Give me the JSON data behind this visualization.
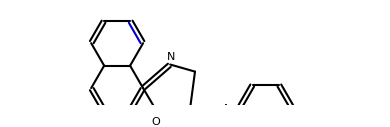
{
  "background_color": "#ffffff",
  "bond_color": "#000000",
  "double_bond_color": "#0000cd",
  "atom_label_N": "N",
  "atom_label_O": "O",
  "label_fontsize": 8,
  "figsize": [
    3.9,
    1.27
  ],
  "dpi": 100,
  "lw": 1.5,
  "doff": 0.018
}
